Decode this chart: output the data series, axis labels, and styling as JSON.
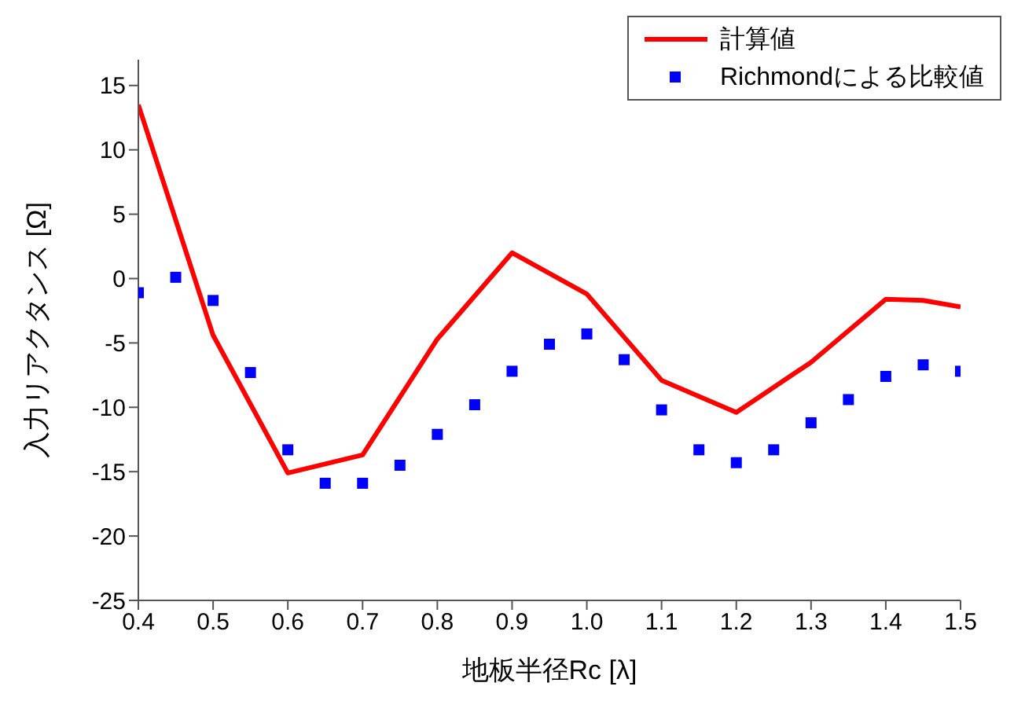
{
  "chart_data": {
    "type": "line",
    "xlabel": "地板半径Rc [λ]",
    "ylabel": "入力リアクタンス [Ω]",
    "xlim": [
      0.4,
      1.5
    ],
    "xticks": [
      0.4,
      0.5,
      0.6,
      0.7,
      0.8,
      0.9,
      {
        "value": 1,
        "label": "1.0"
      },
      1.1,
      1.2,
      1.3,
      1.4,
      1.5
    ],
    "ylim": [
      -25,
      17
    ],
    "yticks": [
      -25,
      -20,
      -15,
      -10,
      -5,
      0,
      5,
      10,
      15
    ],
    "legend": "top right",
    "grid": false,
    "series": [
      {
        "name": "計算値",
        "type": "line",
        "color": "#ff0000",
        "marker": "none",
        "line_style": "solid",
        "x": [
          0.4,
          0.5,
          0.6,
          0.7,
          0.8,
          0.9,
          1.0,
          1.1,
          1.2,
          1.3,
          1.4,
          1.45,
          1.5
        ],
        "values": [
          13.5,
          -4.4,
          -15.1,
          -13.7,
          -4.7,
          2.0,
          -1.2,
          -7.9,
          -10.4,
          -6.5,
          -1.6,
          -1.7,
          -2.2
        ]
      },
      {
        "name": "Richmondによる比較値",
        "type": "scatter",
        "color": "#0000ff",
        "marker": "square",
        "x": [
          0.4,
          0.45,
          0.5,
          0.55,
          0.6,
          0.65,
          0.7,
          0.75,
          0.8,
          0.85,
          0.9,
          0.95,
          1.0,
          1.05,
          1.1,
          1.15,
          1.2,
          1.25,
          1.3,
          1.35,
          1.4,
          1.45,
          1.5
        ],
        "values": [
          -1.1,
          0.1,
          -1.7,
          -7.3,
          -13.3,
          -15.9,
          -15.9,
          -14.5,
          -12.1,
          -9.8,
          -7.2,
          -5.1,
          -4.3,
          -6.3,
          -10.2,
          -13.3,
          -14.3,
          -13.3,
          -11.2,
          -9.4,
          -7.6,
          -6.7,
          -7.2
        ]
      }
    ]
  }
}
